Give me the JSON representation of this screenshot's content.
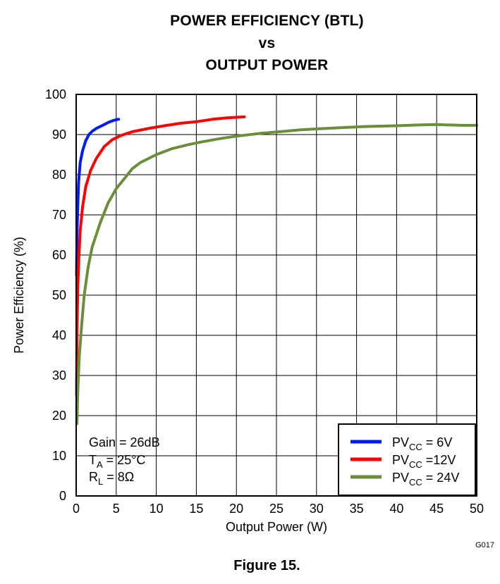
{
  "chart_data": {
    "type": "line",
    "title": [
      "POWER EFFICIENCY (BTL)",
      "vs",
      "OUTPUT POWER"
    ],
    "xlabel": "Output Power (W)",
    "ylabel": "Power Efficiency (%)",
    "xlim": [
      0,
      50
    ],
    "ylim": [
      0,
      100
    ],
    "xticks": [
      0,
      5,
      10,
      15,
      20,
      25,
      30,
      35,
      40,
      45,
      50
    ],
    "yticks": [
      0,
      10,
      20,
      30,
      40,
      50,
      60,
      70,
      80,
      90,
      100
    ],
    "grid": true,
    "legend_position": "bottom-right",
    "series": [
      {
        "name": "PV_CC = 6V",
        "legend_main": "PV",
        "legend_sub": "CC",
        "legend_rest": " = 6V",
        "color": "#0019ff",
        "points": [
          [
            0.05,
            55
          ],
          [
            0.1,
            65
          ],
          [
            0.2,
            72
          ],
          [
            0.3,
            78
          ],
          [
            0.5,
            83
          ],
          [
            0.8,
            86
          ],
          [
            1.2,
            88.5
          ],
          [
            1.6,
            90
          ],
          [
            2.0,
            90.8
          ],
          [
            2.5,
            91.5
          ],
          [
            3.0,
            92
          ],
          [
            3.5,
            92.5
          ],
          [
            4.0,
            93
          ],
          [
            4.5,
            93.4
          ],
          [
            5.0,
            93.7
          ],
          [
            5.3,
            93.8
          ]
        ]
      },
      {
        "name": "PV_CC =12V",
        "legend_main": "PV",
        "legend_sub": "CC",
        "legend_rest": " =12V",
        "color": "#ff0000",
        "points": [
          [
            0.05,
            25
          ],
          [
            0.1,
            40
          ],
          [
            0.2,
            52
          ],
          [
            0.35,
            60
          ],
          [
            0.5,
            66
          ],
          [
            0.8,
            72
          ],
          [
            1.2,
            77
          ],
          [
            1.8,
            81
          ],
          [
            2.5,
            84
          ],
          [
            3.5,
            87
          ],
          [
            4.5,
            88.7
          ],
          [
            5.5,
            89.7
          ],
          [
            7,
            90.7
          ],
          [
            9,
            91.5
          ],
          [
            11,
            92.2
          ],
          [
            13,
            92.8
          ],
          [
            15,
            93.2
          ],
          [
            17,
            93.8
          ],
          [
            19,
            94.2
          ],
          [
            21,
            94.4
          ]
        ]
      },
      {
        "name": "PV_CC = 24V",
        "legend_main": "PV",
        "legend_sub": "CC",
        "legend_rest": " = 24V",
        "color": "#6b8e3a",
        "points": [
          [
            0.1,
            18
          ],
          [
            0.2,
            26
          ],
          [
            0.4,
            35
          ],
          [
            0.7,
            43
          ],
          [
            1,
            50
          ],
          [
            1.5,
            57
          ],
          [
            2,
            62
          ],
          [
            3,
            68
          ],
          [
            4,
            73
          ],
          [
            5,
            76.5
          ],
          [
            6,
            79
          ],
          [
            7,
            81.5
          ],
          [
            8,
            83
          ],
          [
            10,
            85
          ],
          [
            12,
            86.5
          ],
          [
            14,
            87.5
          ],
          [
            16,
            88.3
          ],
          [
            18,
            89
          ],
          [
            20,
            89.6
          ],
          [
            23,
            90.3
          ],
          [
            26,
            90.8
          ],
          [
            28,
            91.2
          ],
          [
            30,
            91.4
          ],
          [
            33,
            91.7
          ],
          [
            36,
            92
          ],
          [
            40,
            92.2
          ],
          [
            43,
            92.4
          ],
          [
            45,
            92.5
          ],
          [
            48,
            92.3
          ],
          [
            50,
            92.3
          ]
        ]
      }
    ],
    "annotations": {
      "gain": "Gain = 26dB",
      "ta_main": "T",
      "ta_sub": "A",
      "ta_rest": " = 25°C",
      "rl_main": "R",
      "rl_sub": "L",
      "rl_rest": " = 8Ω"
    }
  },
  "figure": {
    "caption": "Figure 15.",
    "id": "G017"
  }
}
